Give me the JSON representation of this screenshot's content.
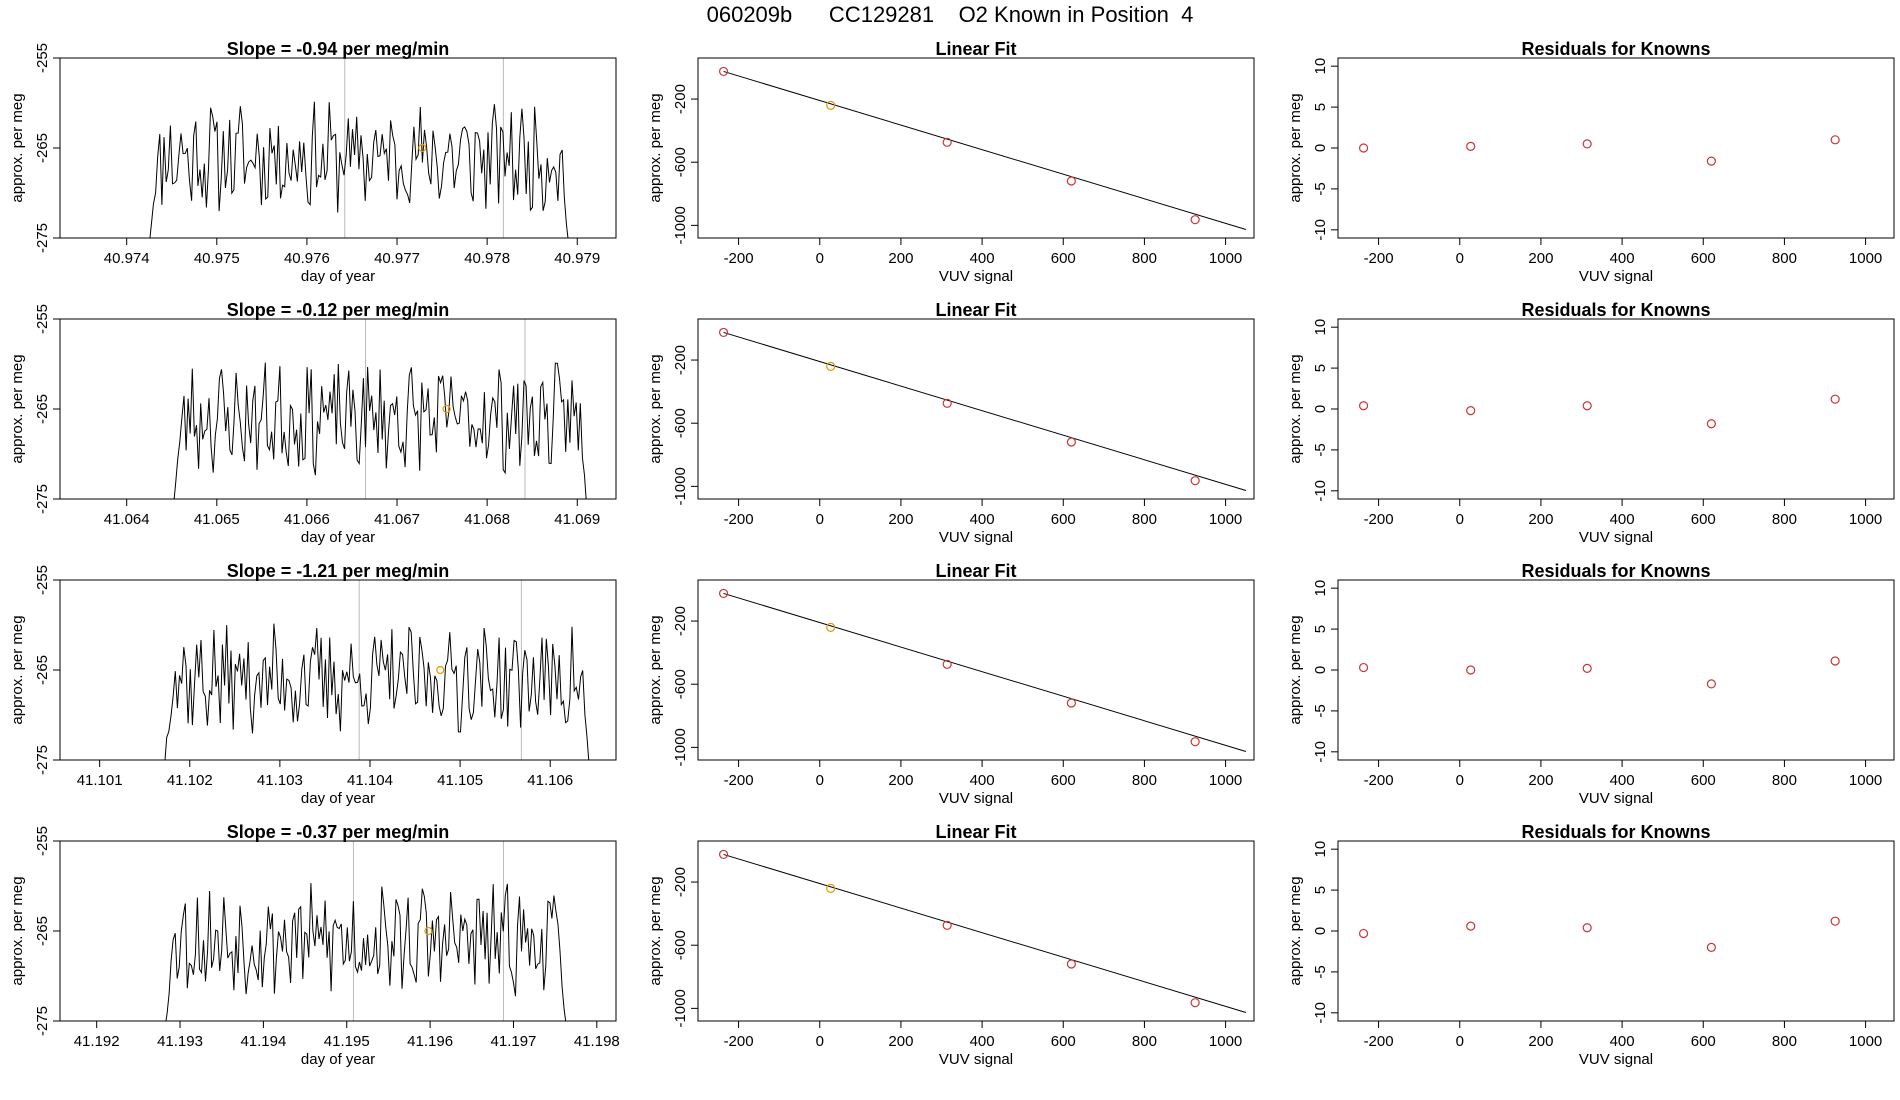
{
  "figure": {
    "title": "060209b      CC129281    O2 Known in Position  4"
  },
  "colors": {
    "trace": "#000000",
    "fit_line": "#000000",
    "marker_sample": "#cc3333",
    "marker_highlight": "#e69500",
    "vertical_marker": "#bbbbbb",
    "frame": "#000000"
  },
  "chart_data": [
    {
      "type": "line",
      "row": 0,
      "title": "Slope =  -0.94  per meg/min",
      "xlabel": "day of year",
      "ylabel": "approx. per meg",
      "xlim": [
        40.97326,
        40.97943
      ],
      "ylim": [
        -275,
        -255
      ],
      "xticks": [
        40.974,
        40.975,
        40.976,
        40.977,
        40.978,
        40.979
      ],
      "xtick_labels": [
        "40.974",
        "40.975",
        "40.976",
        "40.977",
        "40.978",
        "40.979"
      ],
      "yticks": [
        -255,
        -265,
        -275
      ],
      "ytick_labels": [
        "-255",
        "-265",
        "-275"
      ],
      "vlines": [
        40.97642,
        40.97818
      ],
      "trace_start": 40.97425,
      "trace_end": 40.97895,
      "trace_seed": 11,
      "highlight": {
        "x": 40.97728,
        "y": -265
      }
    },
    {
      "type": "scatter",
      "row": 0,
      "title": "Linear Fit",
      "xlabel": "VUV signal",
      "ylabel": "approx. per meg",
      "xlim": [
        -300,
        1070
      ],
      "ylim": [
        -1080,
        60
      ],
      "xticks": [
        -200,
        0,
        200,
        400,
        600,
        800,
        1000
      ],
      "xtick_labels": [
        "-200",
        "0",
        "200",
        "400",
        "600",
        "800",
        "1000"
      ],
      "yticks": [
        -200,
        -600,
        -1000
      ],
      "ytick_labels": [
        "-200",
        "-600",
        "-1000"
      ],
      "points": {
        "x": [
          -237,
          27,
          314,
          620,
          925
        ],
        "y": [
          -25,
          -240,
          -474,
          -719,
          -964
        ]
      },
      "highlight_index": 1,
      "fit_line": {
        "x": [
          -237,
          1050
        ],
        "y": [
          -25,
          -1026
        ]
      }
    },
    {
      "type": "scatter",
      "row": 0,
      "title": "Residuals for Knowns",
      "xlabel": "VUV signal",
      "ylabel": "approx. per meg",
      "xlim": [
        -300,
        1070
      ],
      "ylim": [
        -11,
        11
      ],
      "xticks": [
        -200,
        0,
        200,
        400,
        600,
        800,
        1000
      ],
      "xtick_labels": [
        "-200",
        "0",
        "200",
        "400",
        "600",
        "800",
        "1000"
      ],
      "yticks": [
        -10,
        -5,
        0,
        5,
        10
      ],
      "ytick_labels": [
        "-10",
        "-5",
        "0",
        "5",
        "10"
      ],
      "points": {
        "x": [
          -237,
          27,
          314,
          620,
          925
        ],
        "y": [
          0,
          0.2,
          0.5,
          -1.6,
          1.0
        ]
      }
    },
    {
      "type": "line",
      "row": 1,
      "title": "Slope =  -0.12  per meg/min",
      "xlabel": "day of year",
      "ylabel": "approx. per meg",
      "xlim": [
        41.06326,
        41.06943
      ],
      "ylim": [
        -275,
        -255
      ],
      "xticks": [
        41.064,
        41.065,
        41.066,
        41.067,
        41.068,
        41.069
      ],
      "xtick_labels": [
        "41.064",
        "41.065",
        "41.066",
        "41.067",
        "41.068",
        "41.069"
      ],
      "yticks": [
        -255,
        -265,
        -275
      ],
      "ytick_labels": [
        "-255",
        "-265",
        "-275"
      ],
      "vlines": [
        41.06665,
        41.06842
      ],
      "trace_start": 41.06452,
      "trace_end": 41.06915,
      "trace_seed": 23,
      "highlight": {
        "x": 41.06755,
        "y": -265
      }
    },
    {
      "type": "scatter",
      "row": 1,
      "title": "Linear Fit",
      "xlabel": "VUV signal",
      "ylabel": "approx. per meg",
      "xlim": [
        -300,
        1070
      ],
      "ylim": [
        -1080,
        60
      ],
      "xticks": [
        -200,
        0,
        200,
        400,
        600,
        800,
        1000
      ],
      "xtick_labels": [
        "-200",
        "0",
        "200",
        "400",
        "600",
        "800",
        "1000"
      ],
      "yticks": [
        -200,
        -600,
        -1000
      ],
      "ytick_labels": [
        "-200",
        "-600",
        "-1000"
      ],
      "points": {
        "x": [
          -237,
          27,
          314,
          620,
          925
        ],
        "y": [
          -25,
          -240,
          -474,
          -719,
          -964
        ]
      },
      "highlight_index": 1,
      "fit_line": {
        "x": [
          -237,
          1050
        ],
        "y": [
          -25,
          -1026
        ]
      }
    },
    {
      "type": "scatter",
      "row": 1,
      "title": "Residuals for Knowns",
      "xlabel": "VUV signal",
      "ylabel": "approx. per meg",
      "xlim": [
        -300,
        1070
      ],
      "ylim": [
        -11,
        11
      ],
      "xticks": [
        -200,
        0,
        200,
        400,
        600,
        800,
        1000
      ],
      "xtick_labels": [
        "-200",
        "0",
        "200",
        "400",
        "600",
        "800",
        "1000"
      ],
      "yticks": [
        -10,
        -5,
        0,
        5,
        10
      ],
      "ytick_labels": [
        "-10",
        "-5",
        "0",
        "5",
        "10"
      ],
      "points": {
        "x": [
          -237,
          27,
          314,
          620,
          925
        ],
        "y": [
          0.4,
          -0.2,
          0.4,
          -1.8,
          1.2
        ]
      }
    },
    {
      "type": "line",
      "row": 2,
      "title": "Slope =  -1.21  per meg/min",
      "xlabel": "day of year",
      "ylabel": "approx. per meg",
      "xlim": [
        41.10056,
        41.10673
      ],
      "ylim": [
        -275,
        -255
      ],
      "xticks": [
        41.101,
        41.102,
        41.103,
        41.104,
        41.105,
        41.106
      ],
      "xtick_labels": [
        "41.101",
        "41.102",
        "41.103",
        "41.104",
        "41.105",
        "41.106"
      ],
      "yticks": [
        -255,
        -265,
        -275
      ],
      "ytick_labels": [
        "-255",
        "-265",
        "-275"
      ],
      "vlines": [
        41.10388,
        41.10568
      ],
      "trace_start": 41.10172,
      "trace_end": 41.10648,
      "trace_seed": 37,
      "highlight": {
        "x": 41.10478,
        "y": -265
      }
    },
    {
      "type": "scatter",
      "row": 2,
      "title": "Linear Fit",
      "xlabel": "VUV signal",
      "ylabel": "approx. per meg",
      "xlim": [
        -300,
        1070
      ],
      "ylim": [
        -1080,
        60
      ],
      "xticks": [
        -200,
        0,
        200,
        400,
        600,
        800,
        1000
      ],
      "xtick_labels": [
        "-200",
        "0",
        "200",
        "400",
        "600",
        "800",
        "1000"
      ],
      "yticks": [
        -200,
        -600,
        -1000
      ],
      "ytick_labels": [
        "-200",
        "-600",
        "-1000"
      ],
      "points": {
        "x": [
          -237,
          27,
          314,
          620,
          925
        ],
        "y": [
          -25,
          -240,
          -474,
          -719,
          -964
        ]
      },
      "highlight_index": 1,
      "fit_line": {
        "x": [
          -237,
          1050
        ],
        "y": [
          -25,
          -1026
        ]
      }
    },
    {
      "type": "scatter",
      "row": 2,
      "title": "Residuals for Knowns",
      "xlabel": "VUV signal",
      "ylabel": "approx. per meg",
      "xlim": [
        -300,
        1070
      ],
      "ylim": [
        -11,
        11
      ],
      "xticks": [
        -200,
        0,
        200,
        400,
        600,
        800,
        1000
      ],
      "xtick_labels": [
        "-200",
        "0",
        "200",
        "400",
        "600",
        "800",
        "1000"
      ],
      "yticks": [
        -10,
        -5,
        0,
        5,
        10
      ],
      "ytick_labels": [
        "-10",
        "-5",
        "0",
        "5",
        "10"
      ],
      "points": {
        "x": [
          -237,
          27,
          314,
          620,
          925
        ],
        "y": [
          0.3,
          0,
          0.2,
          -1.7,
          1.1
        ]
      }
    },
    {
      "type": "line",
      "row": 3,
      "title": "Slope =  -0.37  per meg/min",
      "xlabel": "day of year",
      "ylabel": "approx. per meg",
      "xlim": [
        41.19156,
        41.19823
      ],
      "ylim": [
        -275,
        -255
      ],
      "xticks": [
        41.192,
        41.193,
        41.194,
        41.195,
        41.196,
        41.197,
        41.198
      ],
      "xtick_labels": [
        "41.192",
        "41.193",
        "41.194",
        "41.195",
        "41.196",
        "41.197",
        "41.198"
      ],
      "yticks": [
        -255,
        -265,
        -275
      ],
      "ytick_labels": [
        "-255",
        "-265",
        "-275"
      ],
      "vlines": [
        41.19508,
        41.19688
      ],
      "trace_start": 41.19282,
      "trace_end": 41.19768,
      "trace_seed": 53,
      "highlight": {
        "x": 41.19598,
        "y": -265
      }
    },
    {
      "type": "scatter",
      "row": 3,
      "title": "Linear Fit",
      "xlabel": "VUV signal",
      "ylabel": "approx. per meg",
      "xlim": [
        -300,
        1070
      ],
      "ylim": [
        -1080,
        60
      ],
      "xticks": [
        -200,
        0,
        200,
        400,
        600,
        800,
        1000
      ],
      "xtick_labels": [
        "-200",
        "0",
        "200",
        "400",
        "600",
        "800",
        "1000"
      ],
      "yticks": [
        -200,
        -600,
        -1000
      ],
      "ytick_labels": [
        "-200",
        "-600",
        "-1000"
      ],
      "points": {
        "x": [
          -237,
          27,
          314,
          620,
          925
        ],
        "y": [
          -25,
          -240,
          -474,
          -719,
          -964
        ]
      },
      "highlight_index": 1,
      "fit_line": {
        "x": [
          -237,
          1050
        ],
        "y": [
          -25,
          -1026
        ]
      }
    },
    {
      "type": "scatter",
      "row": 3,
      "title": "Residuals for Knowns",
      "xlabel": "VUV signal",
      "ylabel": "approx. per meg",
      "xlim": [
        -300,
        1070
      ],
      "ylim": [
        -11,
        11
      ],
      "xticks": [
        -200,
        0,
        200,
        400,
        600,
        800,
        1000
      ],
      "xtick_labels": [
        "-200",
        "0",
        "200",
        "400",
        "600",
        "800",
        "1000"
      ],
      "yticks": [
        -10,
        -5,
        0,
        5,
        10
      ],
      "ytick_labels": [
        "-10",
        "-5",
        "0",
        "5",
        "10"
      ],
      "points": {
        "x": [
          -237,
          27,
          314,
          620,
          925
        ],
        "y": [
          -0.3,
          0.6,
          0.4,
          -2.0,
          1.2
        ]
      }
    }
  ]
}
